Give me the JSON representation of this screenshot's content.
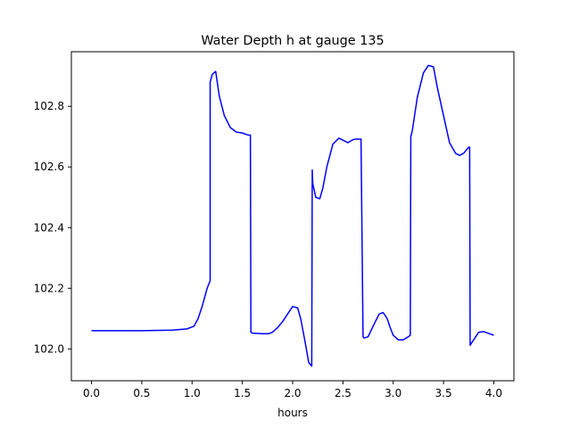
{
  "chart_data": {
    "type": "line",
    "title": "Water Depth h at gauge 135",
    "xlabel": "hours",
    "ylabel": "",
    "xlim": [
      -0.2,
      4.2
    ],
    "ylim": [
      101.895,
      102.98
    ],
    "x_ticks": [
      0.0,
      0.5,
      1.0,
      1.5,
      2.0,
      2.5,
      3.0,
      3.5,
      4.0
    ],
    "x_tick_labels": [
      "0.0",
      "0.5",
      "1.0",
      "1.5",
      "2.0",
      "2.5",
      "3.0",
      "3.5",
      "4.0"
    ],
    "y_ticks": [
      102.0,
      102.2,
      102.4,
      102.6,
      102.8
    ],
    "y_tick_labels": [
      "102.0",
      "102.2",
      "102.4",
      "102.6",
      "102.8"
    ],
    "grid": false,
    "legend": "none",
    "series": [
      {
        "color": "#0000ff",
        "x": [
          0.0,
          0.5,
          0.8,
          0.95,
          1.02,
          1.06,
          1.1,
          1.15,
          1.18,
          1.18,
          1.2,
          1.235,
          1.27,
          1.32,
          1.38,
          1.44,
          1.5,
          1.56,
          1.58,
          1.585,
          1.6,
          1.7,
          1.76,
          1.8,
          1.85,
          1.9,
          1.95,
          2.0,
          2.05,
          2.08,
          2.12,
          2.16,
          2.19,
          2.195,
          2.2,
          2.23,
          2.27,
          2.3,
          2.34,
          2.4,
          2.46,
          2.52,
          2.55,
          2.6,
          2.63,
          2.68,
          2.7,
          2.71,
          2.75,
          2.8,
          2.86,
          2.9,
          2.94,
          2.97,
          3.0,
          3.05,
          3.1,
          3.15,
          3.17,
          3.175,
          3.19,
          3.24,
          3.3,
          3.35,
          3.4,
          3.44,
          3.5,
          3.56,
          3.62,
          3.66,
          3.7,
          3.75,
          3.76,
          3.765,
          3.8,
          3.85,
          3.9,
          3.96,
          4.0
        ],
        "y": [
          102.06,
          102.06,
          102.062,
          102.066,
          102.075,
          102.1,
          102.14,
          102.2,
          102.225,
          102.88,
          102.905,
          102.915,
          102.835,
          102.77,
          102.73,
          102.715,
          102.712,
          102.705,
          102.705,
          102.055,
          102.052,
          102.05,
          102.05,
          102.055,
          102.07,
          102.09,
          102.115,
          102.14,
          102.135,
          102.1,
          102.03,
          101.955,
          101.943,
          102.59,
          102.545,
          102.5,
          102.495,
          102.53,
          102.6,
          102.675,
          102.695,
          102.685,
          102.68,
          102.69,
          102.692,
          102.692,
          102.04,
          102.036,
          102.04,
          102.075,
          102.115,
          102.12,
          102.1,
          102.07,
          102.045,
          102.03,
          102.03,
          102.04,
          102.045,
          102.7,
          102.72,
          102.83,
          102.91,
          102.935,
          102.93,
          102.86,
          102.77,
          102.68,
          102.645,
          102.638,
          102.645,
          102.665,
          102.665,
          102.012,
          102.03,
          102.055,
          102.057,
          102.05,
          102.045
        ]
      }
    ]
  }
}
